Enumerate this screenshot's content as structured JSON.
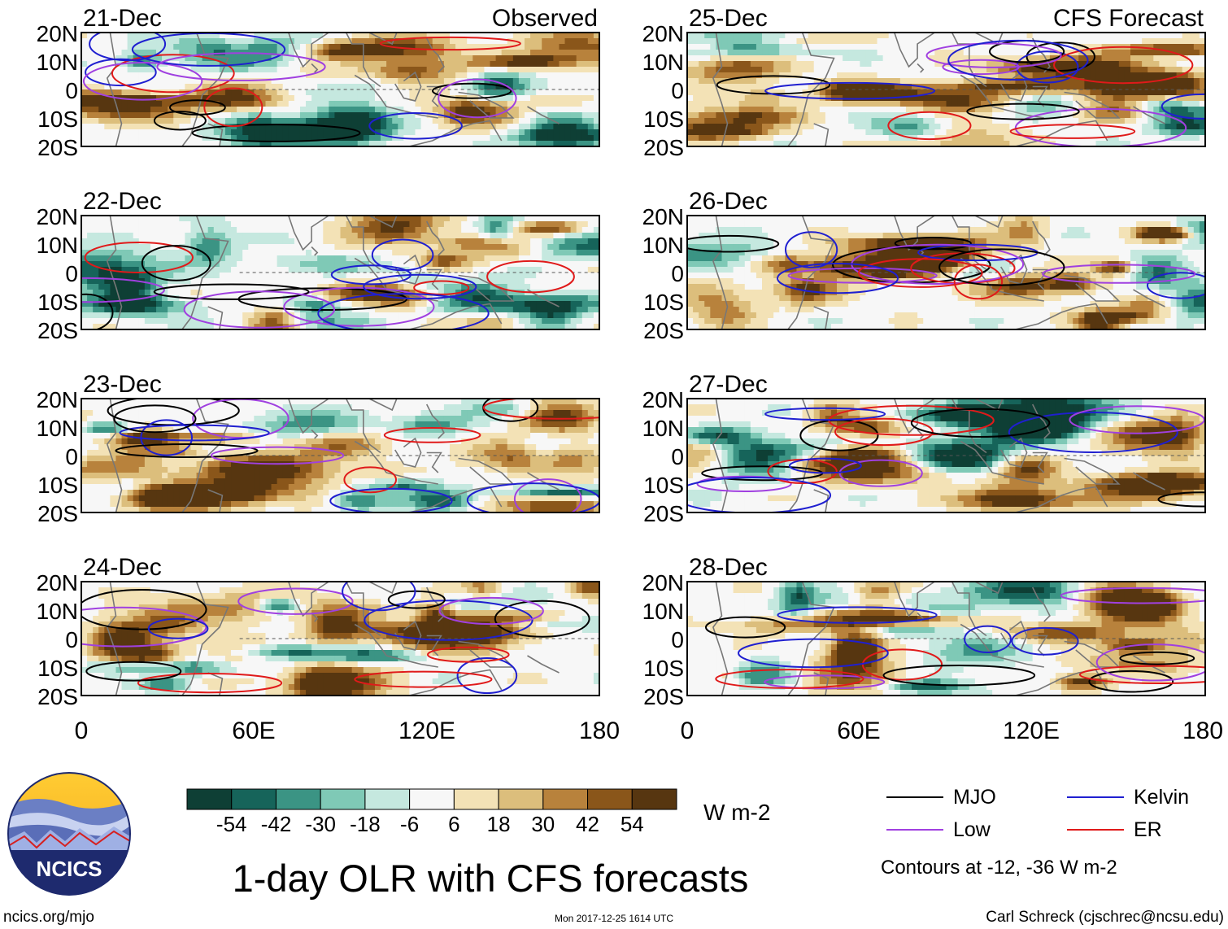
{
  "figure": {
    "title": "1-day OLR with CFS forecasts",
    "website": "ncics.org/mjo",
    "timestamp": "Mon 2017-12-25 1614 UTC",
    "author": "Carl Schreck (cjschrec@ncsu.edu)",
    "logo_text": "NCICS",
    "contours_note": "Contours at -12, -36 W m-2",
    "units": "W m-2"
  },
  "chart_data": {
    "type": "heatmap",
    "variable": "Outgoing longwave radiation anomaly",
    "x_axis": {
      "range": [
        0,
        180
      ],
      "tick_labels": [
        "0",
        "60E",
        "120E",
        "180"
      ],
      "tick_values": [
        0,
        60,
        120,
        180
      ]
    },
    "y_axis": {
      "range": [
        -20,
        20
      ],
      "tick_labels": [
        "20N",
        "10N",
        "0",
        "10S",
        "20S"
      ],
      "tick_values": [
        20,
        10,
        0,
        -10,
        -20
      ]
    },
    "panels": [
      {
        "date": "21-Dec",
        "source": "Observed",
        "seed": 11
      },
      {
        "date": "25-Dec",
        "source": "CFS Forecast",
        "seed": 25
      },
      {
        "date": "22-Dec",
        "source": "",
        "seed": 12
      },
      {
        "date": "26-Dec",
        "source": "",
        "seed": 26
      },
      {
        "date": "23-Dec",
        "source": "",
        "seed": 13
      },
      {
        "date": "27-Dec",
        "source": "",
        "seed": 27
      },
      {
        "date": "24-Dec",
        "source": "",
        "seed": 14
      },
      {
        "date": "28-Dec",
        "source": "",
        "seed": 28
      }
    ],
    "colorbar": {
      "labels": [
        "-54",
        "-42",
        "-30",
        "-18",
        "-6",
        "6",
        "18",
        "30",
        "42",
        "54"
      ],
      "colors": [
        "#0e3f35",
        "#16645a",
        "#3b9484",
        "#7fc9b6",
        "#c5e8df",
        "#f7f7f7",
        "#f3e2b6",
        "#dcbe7c",
        "#b8823c",
        "#8a561a",
        "#573610"
      ]
    },
    "legend": [
      {
        "label": "MJO",
        "color": "#000000"
      },
      {
        "label": "Kelvin",
        "color": "#1f1fd0"
      },
      {
        "label": "Low",
        "color": "#a040e0"
      },
      {
        "label": "ER",
        "color": "#e01a1a"
      }
    ]
  }
}
